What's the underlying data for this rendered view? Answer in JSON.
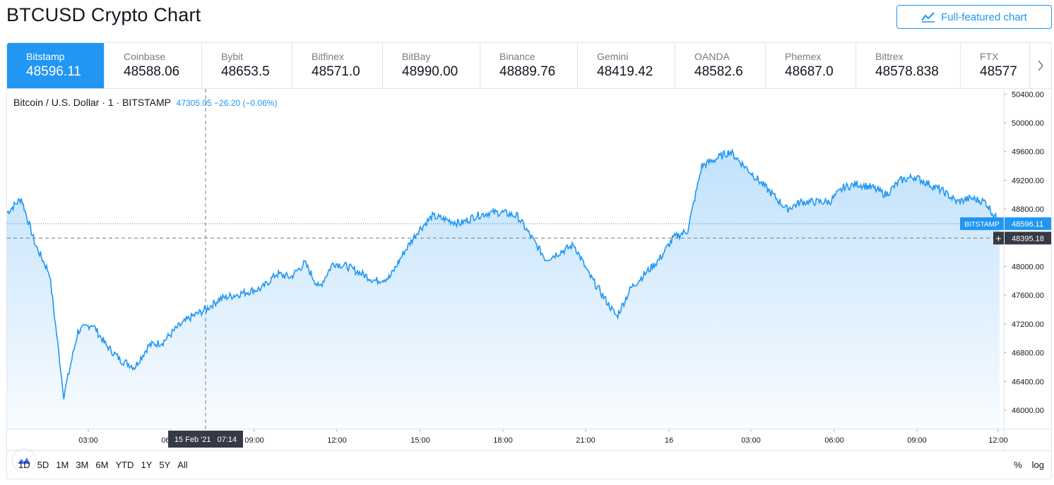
{
  "title": "BTCUSD Crypto Chart",
  "full_chart_button": "Full-featured chart",
  "tabs": [
    {
      "name": "Bitstamp",
      "value": "48596.11",
      "active": true
    },
    {
      "name": "Coinbase",
      "value": "48588.06"
    },
    {
      "name": "Bybit",
      "value": "48653.5"
    },
    {
      "name": "Bitfinex",
      "value": "48571.0"
    },
    {
      "name": "BitBay",
      "value": "48990.00"
    },
    {
      "name": "Binance",
      "value": "48889.76"
    },
    {
      "name": "Gemini",
      "value": "48419.42"
    },
    {
      "name": "OANDA",
      "value": "48582.6"
    },
    {
      "name": "Phemex",
      "value": "48687.0"
    },
    {
      "name": "Bittrex",
      "value": "48578.838"
    },
    {
      "name": "FTX",
      "value": "48577"
    }
  ],
  "legend": {
    "symbol": "Bitcoin / U.S. Dollar · 1 · BITSTAMP",
    "values": "47305.05 −26.20 (−0.06%)"
  },
  "crosshair": {
    "time_label": "15 Feb '21   07:14",
    "price_label": "48395.18"
  },
  "last_price": {
    "exchange": "BITSTAMP",
    "price": "48596.11"
  },
  "range_buttons": [
    "1D",
    "5D",
    "1M",
    "3M",
    "6M",
    "YTD",
    "1Y",
    "5Y",
    "All"
  ],
  "scale_buttons": {
    "percent": "%",
    "log": "log"
  },
  "colors": {
    "accent": "#2196f3",
    "line": "#2196f3",
    "label_bg": "#363a45"
  },
  "chart_data": {
    "type": "area",
    "series": [
      {
        "name": "Bitcoin / U.S. Dollar",
        "x": [
          "01:00",
          "01:30",
          "02:00",
          "02:30",
          "03:00",
          "03:30",
          "04:00",
          "04:30",
          "05:00",
          "05:30",
          "06:00",
          "06:30",
          "07:00",
          "07:30",
          "08:00",
          "08:30",
          "09:00",
          "09:30",
          "10:00",
          "10:30",
          "11:00",
          "11:30",
          "12:00",
          "12:30",
          "13:00",
          "13:30",
          "14:00",
          "14:30",
          "15:00",
          "15:30",
          "16:00",
          "16:30",
          "17:00",
          "17:30",
          "18:00",
          "18:30",
          "19:00",
          "19:30",
          "20:00",
          "20:30",
          "21:00",
          "21:30",
          "22:00",
          "22:30",
          "23:00",
          "23:30",
          "16 00:00",
          "00:30",
          "01:00",
          "01:30",
          "02:00",
          "02:30",
          "03:00",
          "03:30",
          "04:00",
          "04:30",
          "05:00",
          "05:30",
          "06:00",
          "06:30",
          "07:00",
          "07:30",
          "08:00",
          "08:30",
          "09:00",
          "09:30",
          "10:00",
          "10:30",
          "11:00",
          "11:30",
          "12:00"
        ],
        "values": [
          48750,
          48950,
          48300,
          47900,
          46200,
          47100,
          47200,
          46900,
          46700,
          46600,
          46900,
          46950,
          47150,
          47300,
          47400,
          47550,
          47600,
          47650,
          47700,
          47900,
          47850,
          48050,
          47700,
          48050,
          48000,
          47900,
          47800,
          47850,
          48200,
          48500,
          48700,
          48650,
          48600,
          48700,
          48750,
          48750,
          48700,
          48400,
          48100,
          48200,
          48300,
          47900,
          47600,
          47300,
          47700,
          47900,
          48100,
          48400,
          48500,
          49400,
          49500,
          49600,
          49400,
          49200,
          49000,
          48800,
          48900,
          48900,
          48900,
          49100,
          49150,
          49100,
          49000,
          49200,
          49250,
          49150,
          49050,
          48900,
          48950,
          48900,
          48596
        ]
      }
    ],
    "xlabel": "",
    "ylabel": "",
    "x_ticks": [
      "03:00",
      "06:00",
      "09:00",
      "12:00",
      "15:00",
      "18:00",
      "21:00",
      "16",
      "03:00",
      "06:00",
      "09:00",
      "12:00"
    ],
    "y_ticks": [
      46000,
      46400,
      46800,
      47200,
      47600,
      48000,
      48400,
      48800,
      49200,
      49600,
      50000,
      50400
    ],
    "ylim": [
      45800,
      50500
    ],
    "grid": false,
    "legend": "top-left"
  }
}
